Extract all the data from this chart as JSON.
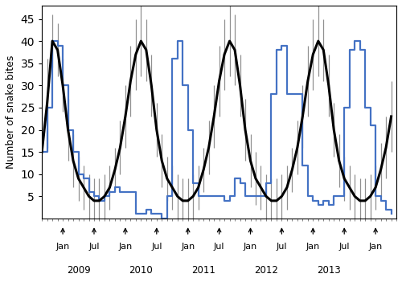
{
  "title": "",
  "ylabel": "Number of snake bites",
  "ylim": [
    0,
    48
  ],
  "yticks": [
    5,
    10,
    15,
    20,
    25,
    30,
    35,
    40,
    45
  ],
  "background_color": "#ffffff",
  "regression_color": "#000000",
  "observed_color": "#4472c4",
  "errorbar_color": "#909090",
  "regression_lw": 2.2,
  "observed_lw": 1.6,
  "start_month": 9,
  "start_year": 2008,
  "observed_monthly": [
    15,
    25,
    40,
    39,
    30,
    20,
    15,
    10,
    9,
    6,
    5,
    4,
    5,
    6,
    7,
    6,
    6,
    6,
    1,
    1,
    2,
    1,
    1,
    0,
    5,
    36,
    40,
    30,
    20,
    8,
    5,
    5,
    5,
    5,
    5,
    4,
    5,
    9,
    8,
    5,
    5,
    5,
    5,
    8,
    28,
    38,
    39,
    28,
    28,
    28,
    12,
    5,
    4,
    3,
    4,
    3,
    5,
    5,
    25,
    38,
    40,
    38,
    25,
    21,
    5,
    4,
    2,
    1
  ],
  "regression_monthly": [
    15,
    26,
    40,
    38,
    30,
    20,
    13,
    9,
    7,
    5,
    4,
    4,
    5,
    7,
    11,
    16,
    23,
    31,
    37,
    40,
    38,
    30,
    20,
    13,
    9,
    7,
    5,
    4,
    4,
    5,
    7,
    11,
    16,
    23,
    31,
    37,
    40,
    38,
    30,
    20,
    13,
    9,
    7,
    5,
    4,
    4,
    5,
    7,
    11,
    16,
    23,
    31,
    37,
    40,
    38,
    30,
    20,
    13,
    9,
    7,
    5,
    4,
    4,
    5,
    7,
    11,
    16,
    23
  ],
  "errorbar_half_widths": [
    8,
    10,
    6,
    6,
    6,
    7,
    6,
    5,
    5,
    5,
    5,
    5,
    5,
    5,
    5,
    6,
    7,
    8,
    8,
    8,
    7,
    7,
    6,
    6,
    5,
    5,
    5,
    5,
    5,
    5,
    5,
    5,
    6,
    7,
    8,
    8,
    8,
    8,
    7,
    7,
    6,
    6,
    5,
    5,
    5,
    5,
    5,
    5,
    5,
    6,
    7,
    8,
    8,
    8,
    7,
    7,
    6,
    6,
    5,
    5,
    5,
    5,
    5,
    5,
    5,
    6,
    7,
    8
  ]
}
